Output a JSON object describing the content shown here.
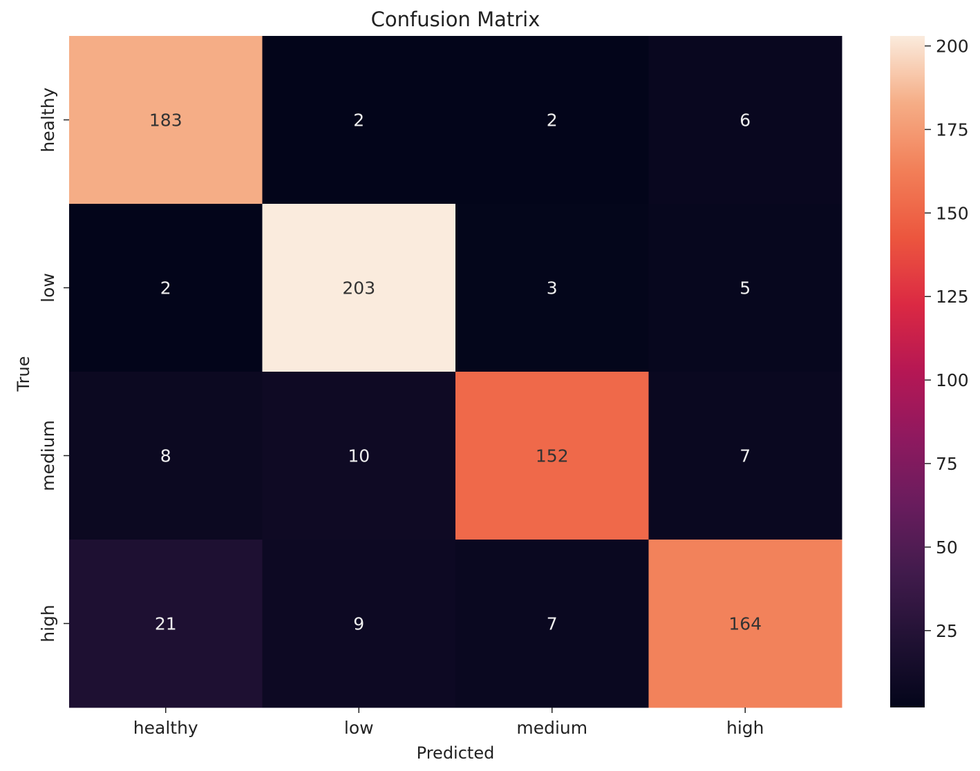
{
  "chart_data": {
    "type": "heatmap",
    "title": "Confusion Matrix",
    "xlabel": "Predicted",
    "ylabel": "True",
    "x_categories": [
      "healthy",
      "low",
      "medium",
      "high"
    ],
    "y_categories": [
      "healthy",
      "low",
      "medium",
      "high"
    ],
    "values": [
      [
        183,
        2,
        2,
        6
      ],
      [
        2,
        203,
        3,
        5
      ],
      [
        8,
        10,
        152,
        7
      ],
      [
        21,
        9,
        7,
        164
      ]
    ],
    "colormap": "rocket",
    "vmin": 2,
    "vmax": 203,
    "colorbar": {
      "ticks": [
        25,
        50,
        75,
        100,
        125,
        150,
        175,
        200
      ],
      "tick_labels": [
        "25",
        "50",
        "75",
        "100",
        "125",
        "150",
        "175",
        "200"
      ]
    }
  }
}
